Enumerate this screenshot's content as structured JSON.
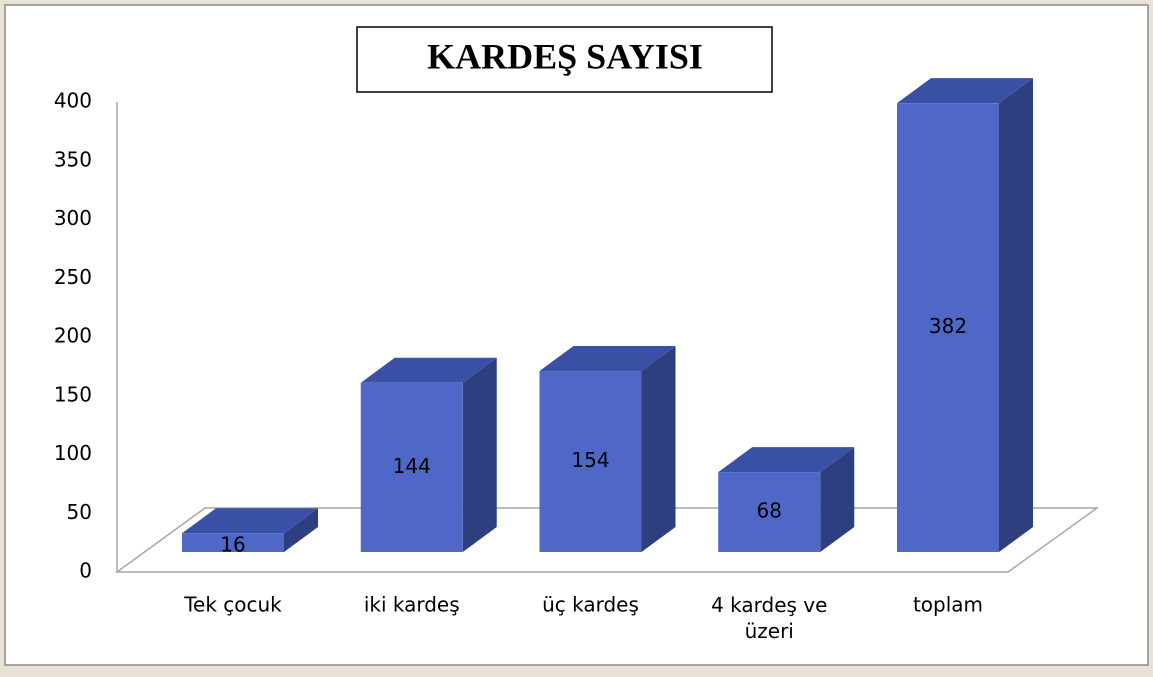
{
  "chart_data": {
    "type": "bar",
    "title": "KARDEŞ SAYISI",
    "categories": [
      "Tek çocuk",
      "iki kardeş",
      "üç kardeş",
      "4 kardeş ve üzeri",
      "toplam"
    ],
    "values": [
      16,
      144,
      154,
      68,
      382
    ],
    "color": "#4f68c8",
    "ylim": [
      0,
      400
    ],
    "yticks": [
      0,
      50,
      100,
      150,
      200,
      250,
      300,
      350,
      400
    ],
    "grid": false
  }
}
